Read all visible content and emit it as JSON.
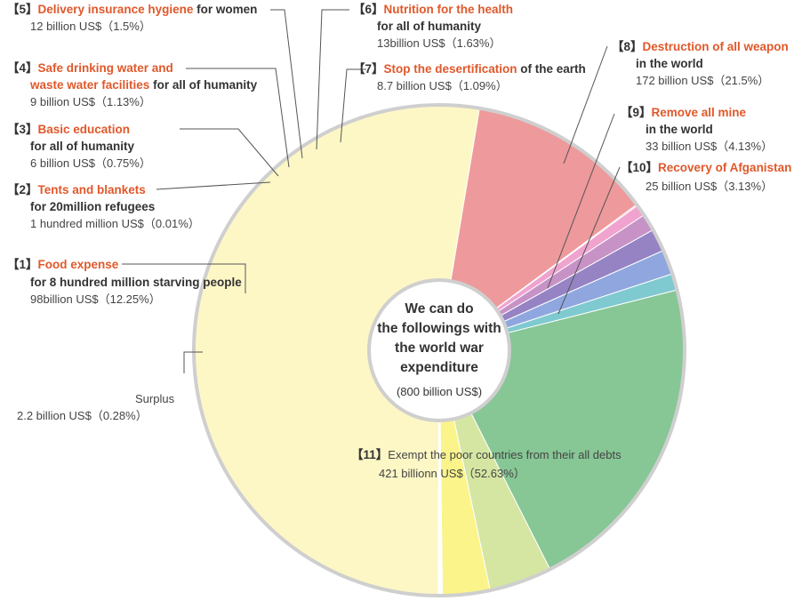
{
  "chart_data": {
    "type": "pie",
    "donut": true,
    "center_title_lines": [
      "We can do",
      "the followings with",
      "the world war",
      "expenditure"
    ],
    "center_subtitle": "(800 billion US$)",
    "total": 800,
    "unit": "billion US$",
    "slices": [
      {
        "id": "s1",
        "tag": "【1】",
        "title": "Food expense",
        "title_suffix": "",
        "subtitle": "for 8 hundred million starving people",
        "amount": "98billion US$（12.25%）",
        "value": 98,
        "percent": 12.25,
        "color": "#ee999b"
      },
      {
        "id": "s2",
        "tag": "【2】",
        "title": "Tents and blankets",
        "title_suffix": "",
        "subtitle": "for 20million refugees",
        "amount": "1 hundred million US$（0.01%）",
        "value": 0.1,
        "percent": 0.01,
        "color": "#f4a3b8"
      },
      {
        "id": "s3",
        "tag": "【3】",
        "title": "Basic education",
        "title_suffix": "",
        "subtitle": "for all of humanity",
        "amount": "6 billion US$（0.75%）",
        "value": 6,
        "percent": 0.75,
        "color": "#f0a3cf"
      },
      {
        "id": "s4",
        "tag": "【4】",
        "title": "Safe drinking water and",
        "title_line2": "waste water facilities",
        "title_suffix": " for all of humanity",
        "subtitle": "",
        "amount": "9 billion US$（1.13%）",
        "value": 9,
        "percent": 1.13,
        "color": "#c792c6"
      },
      {
        "id": "s5",
        "tag": "【5】",
        "title": "Delivery insurance hygiene",
        "title_suffix": " for women",
        "subtitle": "",
        "amount": "12 billion US$（1.5%）",
        "value": 12,
        "percent": 1.5,
        "color": "#9583c4"
      },
      {
        "id": "s6",
        "tag": "【6】",
        "title": "Nutrition for the health",
        "title_suffix": "",
        "subtitle": "for all of humanity",
        "amount": "13billion US$（1.63%）",
        "value": 13,
        "percent": 1.63,
        "color": "#8fa7de"
      },
      {
        "id": "s7",
        "tag": "【7】",
        "title": "Stop the desertification",
        "title_suffix": " of the earth",
        "subtitle": "",
        "amount": "8.7 billion US$（1.09%）",
        "value": 8.7,
        "percent": 1.09,
        "color": "#7fc9d0"
      },
      {
        "id": "s8",
        "tag": "【8】",
        "title": "Destruction of all weapon",
        "title_suffix": "",
        "subtitle": "in the world",
        "amount": "172 billion US$（21.5%）",
        "value": 172,
        "percent": 21.5,
        "color": "#87c695"
      },
      {
        "id": "s9",
        "tag": "【9】",
        "title": "Remove all mine",
        "title_suffix": "",
        "subtitle": "in the world",
        "amount": "33 billion US$（4.13%）",
        "value": 33,
        "percent": 4.13,
        "color": "#d5e6a2"
      },
      {
        "id": "s10",
        "tag": "【10】",
        "title": "Recovery of Afganistan",
        "title_suffix": "",
        "subtitle": "",
        "amount": "25 billion US$（3.13%）",
        "value": 25,
        "percent": 3.13,
        "color": "#fbf48b"
      },
      {
        "id": "s11",
        "tag": "【11】",
        "title": "",
        "title_suffix": "Exempt the poor countries from their all debts",
        "subtitle": "",
        "amount": "421 billionn US$（52.63%）",
        "value": 421,
        "percent": 52.63,
        "color": "#fdf7c6"
      },
      {
        "id": "s0",
        "tag": "",
        "title": "",
        "title_suffix": "Surplus",
        "subtitle": "",
        "amount": "2.2 billion US$（0.28%）",
        "value": 2.2,
        "percent": 0.28,
        "color": "#ffffff"
      }
    ]
  }
}
